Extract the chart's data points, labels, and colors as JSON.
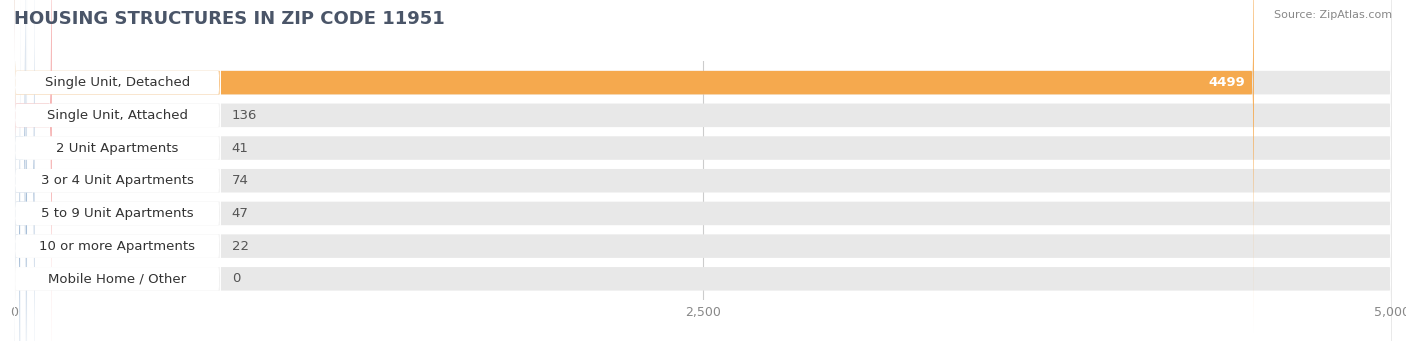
{
  "title": "HOUSING STRUCTURES IN ZIP CODE 11951",
  "source": "Source: ZipAtlas.com",
  "categories": [
    "Single Unit, Detached",
    "Single Unit, Attached",
    "2 Unit Apartments",
    "3 or 4 Unit Apartments",
    "5 to 9 Unit Apartments",
    "10 or more Apartments",
    "Mobile Home / Other"
  ],
  "values": [
    4499,
    136,
    41,
    74,
    47,
    22,
    0
  ],
  "bar_colors": [
    "#F5A94E",
    "#F08080",
    "#A8BFD8",
    "#A8BFD8",
    "#A8BFD8",
    "#A8BFD8",
    "#C4A8C8"
  ],
  "xlim": [
    0,
    5000
  ],
  "xticks": [
    0,
    2500,
    5000
  ],
  "xtick_labels": [
    "0",
    "2,500",
    "5,000"
  ],
  "background_color": "#ffffff",
  "bar_bg_color": "#e8e8e8",
  "title_fontsize": 13,
  "label_fontsize": 9.5,
  "value_fontsize": 9.5,
  "title_color": "#4a5568",
  "source_color": "#888888"
}
